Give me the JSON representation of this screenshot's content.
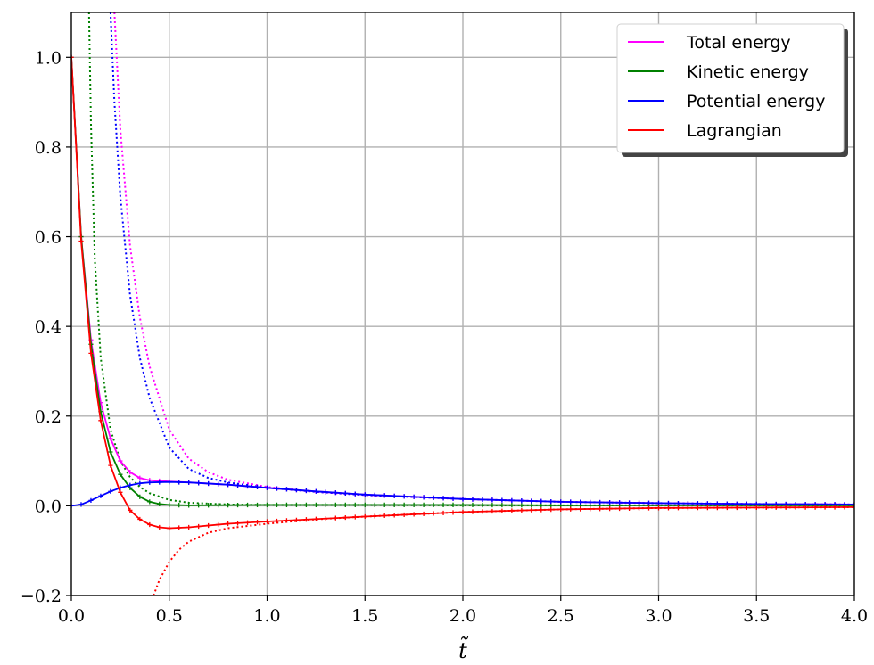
{
  "chart_data": {
    "type": "line",
    "title": "",
    "xlabel": "t̃",
    "ylabel": "",
    "xlim": [
      0,
      4.0
    ],
    "ylim": [
      -0.2,
      1.1
    ],
    "xticks": [
      "0.0",
      "0.5",
      "1.0",
      "1.5",
      "2.0",
      "2.5",
      "3.0",
      "3.5",
      "4.0"
    ],
    "yticks": [
      "−0.2",
      "0.0",
      "0.2",
      "0.4",
      "0.6",
      "0.8",
      "1.0"
    ],
    "grid": true,
    "legend_position": "top-right",
    "series": [
      {
        "name": "Total energy",
        "color": "#ff00ff",
        "style": "solid-marker",
        "x": [
          0,
          0.05,
          0.1,
          0.15,
          0.2,
          0.25,
          0.3,
          0.35,
          0.4,
          0.5,
          0.6,
          0.8,
          1.0,
          1.25,
          1.5,
          2.0,
          2.5,
          3.0,
          3.5,
          4.0
        ],
        "y": [
          1.0,
          0.6,
          0.37,
          0.23,
          0.15,
          0.1,
          0.075,
          0.062,
          0.057,
          0.054,
          0.052,
          0.047,
          0.04,
          0.032,
          0.025,
          0.015,
          0.009,
          0.006,
          0.004,
          0.003
        ]
      },
      {
        "name": "Kinetic energy",
        "color": "#008000",
        "style": "solid-marker",
        "x": [
          0,
          0.05,
          0.1,
          0.15,
          0.2,
          0.25,
          0.3,
          0.35,
          0.4,
          0.45,
          0.5,
          0.6,
          0.8,
          1.0,
          1.5,
          2.0,
          2.5,
          3.0,
          3.5,
          4.0
        ],
        "y": [
          1.0,
          0.6,
          0.36,
          0.21,
          0.12,
          0.07,
          0.04,
          0.02,
          0.009,
          0.004,
          0.002,
          0.001,
          0.0015,
          0.002,
          0.002,
          0.002,
          0.001,
          0.001,
          0.001,
          0.001
        ]
      },
      {
        "name": "Potential energy",
        "color": "#0000ff",
        "style": "solid-marker",
        "x": [
          0,
          0.05,
          0.1,
          0.15,
          0.2,
          0.25,
          0.3,
          0.35,
          0.4,
          0.5,
          0.6,
          0.8,
          1.0,
          1.25,
          1.5,
          2.0,
          2.5,
          3.0,
          3.5,
          4.0
        ],
        "y": [
          0.0,
          0.003,
          0.012,
          0.022,
          0.032,
          0.04,
          0.046,
          0.05,
          0.052,
          0.053,
          0.052,
          0.047,
          0.04,
          0.032,
          0.025,
          0.015,
          0.009,
          0.006,
          0.004,
          0.003
        ]
      },
      {
        "name": "Lagrangian",
        "color": "#ff0000",
        "style": "solid-marker",
        "x": [
          0,
          0.05,
          0.1,
          0.15,
          0.2,
          0.25,
          0.3,
          0.35,
          0.4,
          0.45,
          0.5,
          0.6,
          0.8,
          1.0,
          1.5,
          2.0,
          2.5,
          3.0,
          3.5,
          4.0
        ],
        "y": [
          1.0,
          0.59,
          0.34,
          0.19,
          0.09,
          0.03,
          -0.01,
          -0.03,
          -0.042,
          -0.048,
          -0.05,
          -0.048,
          -0.04,
          -0.035,
          -0.024,
          -0.014,
          -0.008,
          -0.005,
          -0.004,
          -0.003
        ]
      },
      {
        "name": "",
        "color": "#ff00ff",
        "style": "dotted",
        "x": [
          0.22,
          0.25,
          0.3,
          0.35,
          0.4,
          0.5,
          0.6,
          0.7,
          0.8,
          1.0,
          1.25,
          1.5,
          2.0,
          2.5,
          3.0,
          3.5,
          4.0
        ],
        "y": [
          1.1,
          0.84,
          0.58,
          0.42,
          0.31,
          0.17,
          0.105,
          0.075,
          0.058,
          0.042,
          0.031,
          0.024,
          0.015,
          0.009,
          0.006,
          0.004,
          0.003
        ]
      },
      {
        "name": "",
        "color": "#008000",
        "style": "dotted",
        "x": [
          0.09,
          0.1,
          0.12,
          0.15,
          0.2,
          0.25,
          0.3,
          0.35,
          0.4,
          0.5,
          0.6,
          0.8,
          1.0,
          1.5,
          2.0,
          3.0,
          4.0
        ],
        "y": [
          1.1,
          0.85,
          0.55,
          0.33,
          0.17,
          0.1,
          0.064,
          0.042,
          0.028,
          0.013,
          0.007,
          0.003,
          0.002,
          0.002,
          0.001,
          0.001,
          0.001
        ]
      },
      {
        "name": "",
        "color": "#0000ff",
        "style": "dotted",
        "x": [
          0.2,
          0.22,
          0.25,
          0.3,
          0.35,
          0.4,
          0.5,
          0.6,
          0.7,
          0.8,
          1.0,
          1.25,
          1.5,
          2.0,
          2.5,
          3.0,
          3.5,
          4.0
        ],
        "y": [
          1.1,
          0.9,
          0.69,
          0.47,
          0.33,
          0.24,
          0.13,
          0.082,
          0.062,
          0.052,
          0.04,
          0.031,
          0.024,
          0.015,
          0.009,
          0.006,
          0.004,
          0.003
        ]
      },
      {
        "name": "",
        "color": "#ff0000",
        "style": "dotted",
        "x": [
          0.42,
          0.45,
          0.5,
          0.55,
          0.6,
          0.7,
          0.8,
          1.0,
          1.25,
          1.5,
          2.0,
          2.5,
          3.0,
          3.5,
          4.0
        ],
        "y": [
          -0.2,
          -0.165,
          -0.125,
          -0.098,
          -0.08,
          -0.06,
          -0.05,
          -0.04,
          -0.03,
          -0.024,
          -0.014,
          -0.008,
          -0.005,
          -0.004,
          -0.003
        ]
      }
    ]
  }
}
